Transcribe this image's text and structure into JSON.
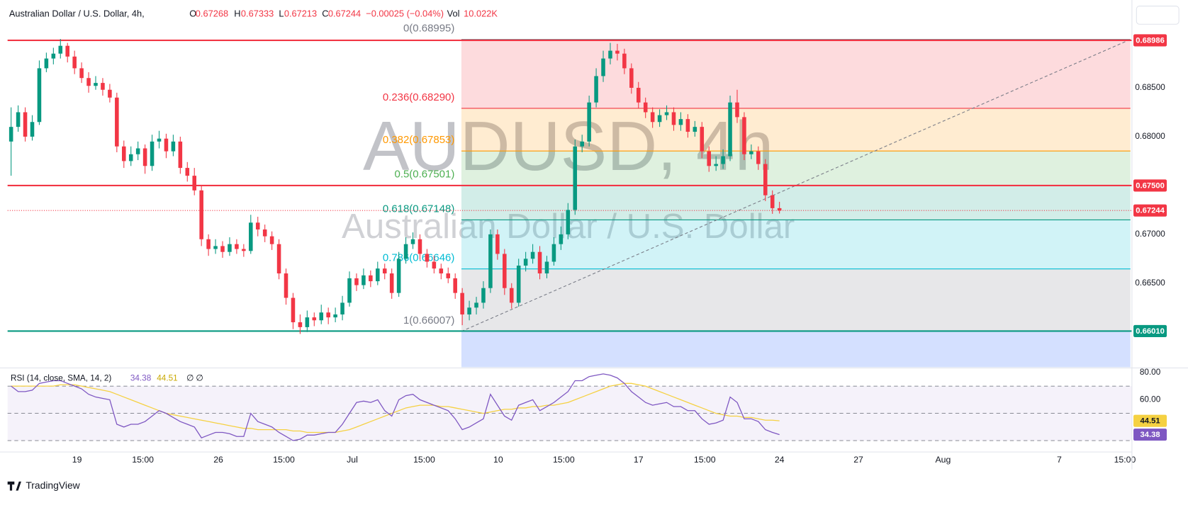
{
  "header": {
    "symbol": "Australian Dollar / U.S. Dollar, 4h,",
    "o_label": "O",
    "o": "0.67268",
    "h_label": "H",
    "h": "0.67333",
    "l_label": "L",
    "l": "0.67213",
    "c_label": "C",
    "c": "0.67244",
    "change": "−0.00025 (−0.04%)",
    "vol_label": "Vol",
    "vol": "10.022K"
  },
  "watermark": {
    "line1": "AUDUSD, 4h",
    "line2": "Australian Dollar / U.S. Dollar"
  },
  "footer": {
    "brand": "TradingView"
  },
  "chart_data": [
    {
      "type": "candlestick",
      "up_color": "#089981",
      "down_color": "#f23645",
      "candles": [
        [
          0.6795,
          0.683,
          0.676,
          0.681
        ],
        [
          0.681,
          0.6832,
          0.6805,
          0.6825
        ],
        [
          0.6825,
          0.683,
          0.6795,
          0.68
        ],
        [
          0.68,
          0.6822,
          0.6796,
          0.6815
        ],
        [
          0.6815,
          0.6878,
          0.6812,
          0.687
        ],
        [
          0.687,
          0.6886,
          0.6866,
          0.688
        ],
        [
          0.688,
          0.6891,
          0.6874,
          0.6885
        ],
        [
          0.6885,
          0.69,
          0.688,
          0.6893
        ],
        [
          0.6893,
          0.6896,
          0.6876,
          0.6882
        ],
        [
          0.6882,
          0.6888,
          0.6864,
          0.687
        ],
        [
          0.687,
          0.6876,
          0.6855,
          0.686
        ],
        [
          0.686,
          0.6866,
          0.6845,
          0.6852
        ],
        [
          0.6852,
          0.6862,
          0.6848,
          0.6855
        ],
        [
          0.6855,
          0.686,
          0.6842,
          0.6848
        ],
        [
          0.6848,
          0.6854,
          0.6835,
          0.684
        ],
        [
          0.684,
          0.6845,
          0.6784,
          0.679
        ],
        [
          0.679,
          0.6796,
          0.6768,
          0.6775
        ],
        [
          0.6775,
          0.679,
          0.677,
          0.6782
        ],
        [
          0.6782,
          0.6795,
          0.6776,
          0.6788
        ],
        [
          0.6788,
          0.6792,
          0.6762,
          0.677
        ],
        [
          0.677,
          0.6802,
          0.6765,
          0.6795
        ],
        [
          0.6795,
          0.6806,
          0.6788,
          0.6798
        ],
        [
          0.6798,
          0.6803,
          0.6778,
          0.6785
        ],
        [
          0.6785,
          0.6802,
          0.678,
          0.6795
        ],
        [
          0.6795,
          0.68,
          0.6762,
          0.6768
        ],
        [
          0.6768,
          0.6774,
          0.6754,
          0.676
        ],
        [
          0.676,
          0.6768,
          0.674,
          0.6745
        ],
        [
          0.6745,
          0.675,
          0.6688,
          0.6695
        ],
        [
          0.6695,
          0.67,
          0.6678,
          0.6685
        ],
        [
          0.6685,
          0.6695,
          0.668,
          0.6688
        ],
        [
          0.6688,
          0.6693,
          0.6676,
          0.6682
        ],
        [
          0.6682,
          0.6697,
          0.6678,
          0.669
        ],
        [
          0.669,
          0.6695,
          0.668,
          0.6685
        ],
        [
          0.6685,
          0.669,
          0.6677,
          0.6683
        ],
        [
          0.6683,
          0.672,
          0.668,
          0.6712
        ],
        [
          0.6712,
          0.6718,
          0.6698,
          0.6705
        ],
        [
          0.6705,
          0.671,
          0.6692,
          0.6698
        ],
        [
          0.6698,
          0.6703,
          0.6684,
          0.669
        ],
        [
          0.669,
          0.6695,
          0.6654,
          0.666
        ],
        [
          0.666,
          0.6665,
          0.6628,
          0.6635
        ],
        [
          0.6635,
          0.664,
          0.6603,
          0.661
        ],
        [
          0.661,
          0.6618,
          0.6598,
          0.6605
        ],
        [
          0.6605,
          0.6622,
          0.66,
          0.6615
        ],
        [
          0.6615,
          0.662,
          0.6606,
          0.6612
        ],
        [
          0.6612,
          0.6628,
          0.6608,
          0.662
        ],
        [
          0.662,
          0.6625,
          0.6608,
          0.6615
        ],
        [
          0.6615,
          0.6625,
          0.661,
          0.6618
        ],
        [
          0.6618,
          0.6637,
          0.6612,
          0.663
        ],
        [
          0.663,
          0.6662,
          0.6626,
          0.6655
        ],
        [
          0.6655,
          0.666,
          0.6642,
          0.6648
        ],
        [
          0.6648,
          0.6665,
          0.6644,
          0.6658
        ],
        [
          0.6658,
          0.6663,
          0.6646,
          0.6652
        ],
        [
          0.6652,
          0.6672,
          0.6648,
          0.6665
        ],
        [
          0.6665,
          0.667,
          0.6654,
          0.666
        ],
        [
          0.666,
          0.6665,
          0.6634,
          0.664
        ],
        [
          0.664,
          0.6682,
          0.6636,
          0.6675
        ],
        [
          0.6675,
          0.6697,
          0.667,
          0.669
        ],
        [
          0.669,
          0.6702,
          0.6685,
          0.6695
        ],
        [
          0.6695,
          0.67,
          0.6674,
          0.668
        ],
        [
          0.668,
          0.6685,
          0.6666,
          0.6672
        ],
        [
          0.6672,
          0.6678,
          0.666,
          0.6665
        ],
        [
          0.6665,
          0.667,
          0.6654,
          0.666
        ],
        [
          0.666,
          0.6666,
          0.665,
          0.6655
        ],
        [
          0.6655,
          0.666,
          0.6634,
          0.664
        ],
        [
          0.664,
          0.6645,
          0.6607,
          0.6618
        ],
        [
          0.6618,
          0.6632,
          0.6612,
          0.6625
        ],
        [
          0.6625,
          0.6636,
          0.6618,
          0.663
        ],
        [
          0.663,
          0.6652,
          0.6624,
          0.6645
        ],
        [
          0.6645,
          0.6705,
          0.664,
          0.67
        ],
        [
          0.67,
          0.6705,
          0.6674,
          0.668
        ],
        [
          0.668,
          0.6685,
          0.6638,
          0.6645
        ],
        [
          0.6645,
          0.665,
          0.6624,
          0.663
        ],
        [
          0.663,
          0.6675,
          0.6626,
          0.6668
        ],
        [
          0.6668,
          0.6682,
          0.6662,
          0.6675
        ],
        [
          0.6675,
          0.669,
          0.667,
          0.6682
        ],
        [
          0.6682,
          0.6688,
          0.6654,
          0.666
        ],
        [
          0.666,
          0.6678,
          0.6655,
          0.6672
        ],
        [
          0.6672,
          0.6697,
          0.6668,
          0.669
        ],
        [
          0.669,
          0.6708,
          0.6684,
          0.67
        ],
        [
          0.67,
          0.6732,
          0.6695,
          0.6725
        ],
        [
          0.6725,
          0.6797,
          0.672,
          0.679
        ],
        [
          0.679,
          0.6802,
          0.6784,
          0.6795
        ],
        [
          0.6795,
          0.6842,
          0.679,
          0.6835
        ],
        [
          0.6835,
          0.687,
          0.683,
          0.6862
        ],
        [
          0.6862,
          0.6888,
          0.6856,
          0.688
        ],
        [
          0.688,
          0.6896,
          0.6874,
          0.6888
        ],
        [
          0.6888,
          0.6895,
          0.6878,
          0.6885
        ],
        [
          0.6885,
          0.689,
          0.6864,
          0.687
        ],
        [
          0.687,
          0.6875,
          0.6844,
          0.685
        ],
        [
          0.685,
          0.6856,
          0.6829,
          0.6835
        ],
        [
          0.6835,
          0.684,
          0.6819,
          0.6825
        ],
        [
          0.6825,
          0.683,
          0.6809,
          0.6815
        ],
        [
          0.6815,
          0.6828,
          0.681,
          0.6822
        ],
        [
          0.6822,
          0.6832,
          0.6817,
          0.6825
        ],
        [
          0.6825,
          0.683,
          0.6806,
          0.6812
        ],
        [
          0.6812,
          0.6825,
          0.6806,
          0.6818
        ],
        [
          0.6818,
          0.6823,
          0.6799,
          0.6805
        ],
        [
          0.6805,
          0.6816,
          0.68,
          0.681
        ],
        [
          0.681,
          0.6815,
          0.6778,
          0.6785
        ],
        [
          0.6785,
          0.679,
          0.6764,
          0.677
        ],
        [
          0.677,
          0.678,
          0.6765,
          0.6772
        ],
        [
          0.6772,
          0.6787,
          0.6767,
          0.678
        ],
        [
          0.678,
          0.6842,
          0.6775,
          0.6835
        ],
        [
          0.6835,
          0.6848,
          0.6814,
          0.682
        ],
        [
          0.682,
          0.6825,
          0.6776,
          0.6782
        ],
        [
          0.6782,
          0.6792,
          0.6777,
          0.6785
        ],
        [
          0.6785,
          0.679,
          0.6766,
          0.6772
        ],
        [
          0.6772,
          0.6777,
          0.6734,
          0.674
        ],
        [
          0.674,
          0.6745,
          0.6721,
          0.67268
        ],
        [
          0.67268,
          0.67333,
          0.67213,
          0.67244
        ]
      ],
      "xlim": [
        -0.5,
        159
      ],
      "xticks": [
        {
          "value": 9.35,
          "label": "19"
        },
        {
          "value": 18.7,
          "label": "15:00"
        },
        {
          "value": 29.4,
          "label": "26"
        },
        {
          "value": 38.7,
          "label": "15:00"
        },
        {
          "value": 48.4,
          "label": "Jul"
        },
        {
          "value": 58.6,
          "label": "15:00"
        },
        {
          "value": 69.1,
          "label": "10"
        },
        {
          "value": 78.4,
          "label": "15:00"
        },
        {
          "value": 89.0,
          "label": "17"
        },
        {
          "value": 98.4,
          "label": "15:00"
        },
        {
          "value": 109.0,
          "label": "24"
        },
        {
          "value": 120.2,
          "label": "27"
        },
        {
          "value": 132.2,
          "label": "Aug"
        },
        {
          "value": 148.7,
          "label": "7"
        },
        {
          "value": 158.0,
          "label": "15:00"
        }
      ],
      "ylim": [
        0.6564,
        0.6936
      ],
      "yticks": [
        {
          "value": 0.685,
          "label": "0.68500"
        },
        {
          "value": 0.68,
          "label": "0.68000"
        },
        {
          "value": 0.67,
          "label": "0.67000"
        },
        {
          "value": 0.665,
          "label": "0.66500"
        }
      ],
      "price_lines": [
        {
          "value": 0.68986,
          "label": "0.68986",
          "color": "#f23645",
          "style": "solid"
        },
        {
          "value": 0.675,
          "label": "0.67500",
          "color": "#f23645",
          "style": "solid"
        },
        {
          "value": 0.67244,
          "label": "0.67244",
          "color": "#f23645",
          "style": "dotted"
        },
        {
          "value": 0.6601,
          "label": "0.66010",
          "color": "#089981",
          "style": "solid"
        }
      ],
      "fib_levels": [
        {
          "label": "0(0.68995)",
          "value": 0.68995,
          "color": "#787b86"
        },
        {
          "label": "0.236(0.68290)",
          "value": 0.6829,
          "color": "#f23645"
        },
        {
          "label": "0.382(0.67853)",
          "value": 0.67853,
          "color": "#ff9800"
        },
        {
          "label": "0.5(0.67501)",
          "value": 0.67501,
          "color": "#4caf50"
        },
        {
          "label": "0.618(0.67148)",
          "value": 0.67148,
          "color": "#089981"
        },
        {
          "label": "0.786(0.66646)",
          "value": 0.66646,
          "color": "#00bcd4"
        },
        {
          "label": "1(0.66007)",
          "value": 0.66007,
          "color": "#787b86"
        }
      ]
    },
    {
      "type": "line",
      "legend": "RSI (14, close, SMA, 14, 2)",
      "legend_extra": "∅ ∅",
      "series": [
        {
          "color": "#7e57c2",
          "values": [
            70,
            66,
            66,
            67,
            72,
            73,
            74,
            74,
            72,
            70,
            68,
            64,
            62,
            61,
            60,
            42,
            40,
            42,
            42,
            44,
            48,
            52,
            50,
            47,
            44,
            42,
            40,
            32,
            34,
            36,
            36,
            35,
            33,
            33,
            50,
            44,
            42,
            40,
            36,
            33,
            30,
            31,
            34,
            34,
            35,
            36,
            36,
            42,
            50,
            58,
            59,
            58,
            60,
            52,
            48,
            60,
            63,
            64,
            60,
            58,
            56,
            54,
            52,
            46,
            38,
            40,
            43,
            46,
            64,
            56,
            48,
            45,
            56,
            58,
            60,
            52,
            55,
            58,
            62,
            66,
            74,
            74,
            77,
            78,
            79,
            78,
            76,
            72,
            66,
            62,
            58,
            56,
            57,
            58,
            55,
            55,
            52,
            52,
            46,
            42,
            43,
            45,
            62,
            58,
            46,
            46,
            44,
            38,
            36,
            34.38
          ]
        },
        {
          "color": "#f5d142",
          "values": [
            70,
            70,
            70,
            70,
            70,
            70,
            70,
            71,
            71,
            71,
            70,
            69,
            68,
            67,
            66,
            64,
            62,
            60,
            58,
            56,
            54,
            52,
            50,
            49,
            48,
            47,
            46,
            45,
            44,
            43,
            42,
            41,
            40,
            39,
            39,
            38,
            38,
            38,
            38,
            38,
            37,
            37,
            36,
            36,
            36,
            36,
            36,
            37,
            38,
            40,
            42,
            44,
            46,
            48,
            50,
            52,
            54,
            55,
            56,
            56,
            56,
            55,
            55,
            54,
            53,
            52,
            51,
            50,
            51,
            52,
            53,
            53,
            54,
            54,
            55,
            55,
            56,
            56,
            57,
            58,
            60,
            62,
            64,
            66,
            68,
            70,
            71,
            72,
            72,
            71,
            70,
            68,
            66,
            64,
            62,
            60,
            58,
            56,
            54,
            52,
            50,
            49,
            48,
            48,
            47,
            47,
            46,
            45,
            45,
            44.51
          ]
        }
      ],
      "bands": [
        70,
        50,
        30
      ],
      "ylim": [
        24.4,
        82.8
      ],
      "yticks": [
        {
          "value": 80,
          "label": "80.00"
        },
        {
          "value": 60,
          "label": "60.00"
        }
      ]
    }
  ]
}
